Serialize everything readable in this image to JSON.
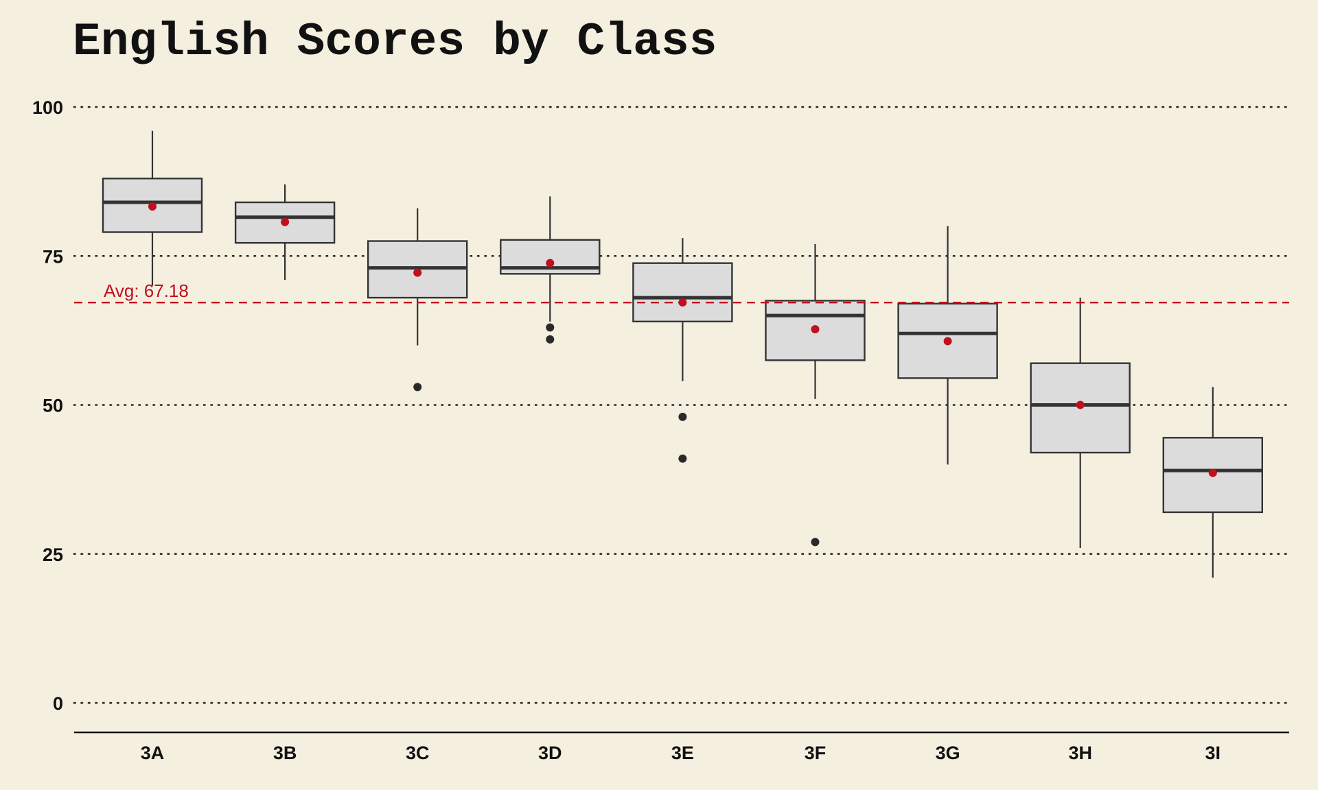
{
  "chart_data": {
    "type": "boxplot",
    "title": "English Scores by Class",
    "xlabel": "",
    "ylabel": "",
    "ylim": [
      -5,
      103
    ],
    "yticks": [
      0,
      25,
      50,
      75,
      100
    ],
    "grid": "horizontal-dotted",
    "categories": [
      "3A",
      "3B",
      "3C",
      "3D",
      "3E",
      "3F",
      "3G",
      "3H",
      "3I"
    ],
    "boxes": [
      {
        "category": "3A",
        "whisker_low": 70,
        "q1": 79,
        "median": 84,
        "q3": 88,
        "whisker_high": 96,
        "mean": 83.3,
        "outliers": []
      },
      {
        "category": "3B",
        "whisker_low": 71,
        "q1": 77.2,
        "median": 81.5,
        "q3": 84,
        "whisker_high": 87,
        "mean": 80.7,
        "outliers": []
      },
      {
        "category": "3C",
        "whisker_low": 60,
        "q1": 68,
        "median": 73,
        "q3": 77.5,
        "whisker_high": 83,
        "mean": 72.2,
        "outliers": [
          53
        ]
      },
      {
        "category": "3D",
        "whisker_low": 64,
        "q1": 72,
        "median": 73,
        "q3": 77.7,
        "whisker_high": 85,
        "mean": 73.8,
        "outliers": [
          63,
          61
        ]
      },
      {
        "category": "3E",
        "whisker_low": 54,
        "q1": 64,
        "median": 68,
        "q3": 73.8,
        "whisker_high": 78,
        "mean": 67.2,
        "outliers": [
          48,
          41
        ]
      },
      {
        "category": "3F",
        "whisker_low": 51,
        "q1": 57.5,
        "median": 65,
        "q3": 67.5,
        "whisker_high": 77,
        "mean": 62.7,
        "outliers": [
          27
        ]
      },
      {
        "category": "3G",
        "whisker_low": 40,
        "q1": 54.5,
        "median": 62,
        "q3": 67,
        "whisker_high": 80,
        "mean": 60.7,
        "outliers": []
      },
      {
        "category": "3H",
        "whisker_low": 26,
        "q1": 42,
        "median": 50,
        "q3": 57,
        "whisker_high": 68,
        "mean": 50,
        "outliers": []
      },
      {
        "category": "3I",
        "whisker_low": 21,
        "q1": 32,
        "median": 39,
        "q3": 44.5,
        "whisker_high": 53,
        "mean": 38.6,
        "outliers": []
      }
    ],
    "reference_line": {
      "value": 67.18,
      "label": "Avg: 67.18",
      "style": "dashed"
    },
    "colors": {
      "background": "#f5efe0",
      "box_fill": "#dcdcdc",
      "box_stroke": "#333333",
      "mean_marker": "#c0101e",
      "reference_line": "#c0101e",
      "outlier": "#2a2a2a",
      "grid": "#222222",
      "axis": "#111111"
    }
  }
}
